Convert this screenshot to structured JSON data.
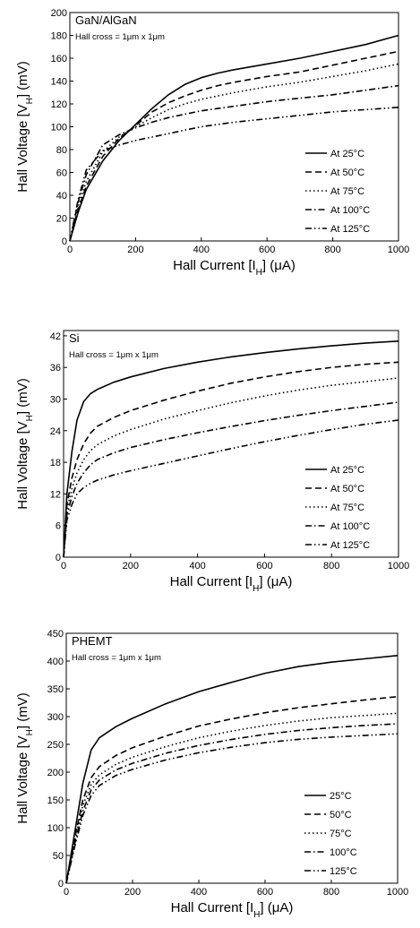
{
  "chart_data": [
    {
      "type": "line",
      "title": "GaN/AlGaN",
      "annotation": "Hall cross = 1μm x 1μm",
      "xlabel": "Hall Current [Iₕ] (μA)",
      "xlabel_parts": {
        "pre": "Hall Current [I",
        "sub": "H",
        "post": "] (μA)"
      },
      "ylabel_parts": {
        "pre": "Hall Voltage [V",
        "sub": "H",
        "post": "] (mV)"
      },
      "xlim": [
        0,
        1000
      ],
      "ylim": [
        0,
        200
      ],
      "xticks": [
        0,
        200,
        400,
        600,
        800,
        1000
      ],
      "yticks": [
        0,
        20,
        40,
        60,
        80,
        100,
        120,
        140,
        160,
        180,
        200
      ],
      "legend_position": "bottom-right",
      "x": [
        0,
        25,
        50,
        100,
        150,
        200,
        250,
        300,
        350,
        400,
        450,
        500,
        600,
        700,
        800,
        900,
        1000
      ],
      "series": [
        {
          "name": "At 25°C",
          "dash": "solid",
          "values": [
            0,
            25,
            45,
            70,
            88,
            102,
            116,
            128,
            137,
            143,
            147,
            150,
            155,
            160,
            166,
            172,
            180
          ]
        },
        {
          "name": "At 50°C",
          "dash": "dash",
          "values": [
            0,
            27,
            48,
            74,
            90,
            101,
            113,
            121,
            127,
            132,
            136,
            139,
            144,
            148,
            154,
            160,
            166
          ]
        },
        {
          "name": "At 75°C",
          "dash": "dot",
          "values": [
            0,
            30,
            52,
            78,
            91,
            100,
            108,
            115,
            120,
            124,
            127,
            130,
            135,
            139,
            144,
            149,
            155
          ]
        },
        {
          "name": "At 100°C",
          "dash": "dashdot",
          "values": [
            0,
            34,
            58,
            84,
            93,
            99,
            104,
            108,
            111,
            114,
            116,
            118,
            122,
            125,
            128,
            132,
            136
          ]
        },
        {
          "name": "At 125°C",
          "dash": "dashdotdot",
          "values": [
            0,
            36,
            62,
            79,
            84,
            88,
            91,
            94,
            97,
            100,
            102,
            104,
            107,
            110,
            113,
            115,
            117
          ]
        }
      ]
    },
    {
      "type": "line",
      "title": "Si",
      "annotation": "Hall cross = 1μm x 1μm",
      "xlabel_parts": {
        "pre": "Hall Current [I",
        "sub": "H",
        "post": "] (μA)"
      },
      "ylabel_parts": {
        "pre": "Hall Voltage [V",
        "sub": "H",
        "post": "] (mV)"
      },
      "xlim": [
        0,
        1000
      ],
      "ylim": [
        0,
        43
      ],
      "xticks": [
        0,
        200,
        400,
        600,
        800,
        1000
      ],
      "yticks": [
        0,
        6,
        12,
        18,
        24,
        30,
        36,
        42
      ],
      "legend_position": "bottom-right",
      "x": [
        0,
        10,
        25,
        40,
        60,
        80,
        100,
        150,
        200,
        300,
        400,
        500,
        600,
        700,
        800,
        900,
        1000
      ],
      "series": [
        {
          "name": "At 25°C",
          "dash": "solid",
          "values": [
            0,
            12,
            20,
            26,
            29.5,
            31,
            31.8,
            33.2,
            34.2,
            35.8,
            37,
            38,
            38.8,
            39.5,
            40.1,
            40.6,
            41
          ]
        },
        {
          "name": "At 50°C",
          "dash": "dash",
          "values": [
            0,
            10,
            15,
            18.5,
            21.5,
            23.5,
            24.8,
            26.5,
            27.8,
            29.8,
            31.5,
            33,
            34.2,
            35.2,
            36,
            36.6,
            37
          ]
        },
        {
          "name": "At 75°C",
          "dash": "dot",
          "values": [
            0,
            9,
            13,
            16,
            18.5,
            20.2,
            21.3,
            23,
            24.2,
            26.2,
            27.8,
            29.3,
            30.6,
            31.7,
            32.6,
            33.3,
            34
          ]
        },
        {
          "name": "At 100°C",
          "dash": "dashdot",
          "values": [
            0,
            8,
            11.5,
            14,
            16,
            17.5,
            18.5,
            19.8,
            20.8,
            22.3,
            23.6,
            24.8,
            25.9,
            26.9,
            27.8,
            28.6,
            29.4
          ]
        },
        {
          "name": "At 125°C",
          "dash": "dashdotdot",
          "values": [
            0,
            7,
            10,
            12,
            13.2,
            14,
            14.6,
            15.6,
            16.4,
            17.8,
            19.2,
            20.6,
            21.9,
            23.1,
            24.2,
            25.2,
            26
          ]
        }
      ]
    },
    {
      "type": "line",
      "title": "PHEMT",
      "annotation": "Hall cross = 1μm x 1μm",
      "xlabel_parts": {
        "pre": "Hall Current [I",
        "sub": "H",
        "post": "] (μA)"
      },
      "ylabel_parts": {
        "pre": "Hall Voltage [V",
        "sub": "H",
        "post": "] (mV)"
      },
      "xlim": [
        0,
        1000
      ],
      "ylim": [
        0,
        450
      ],
      "xticks": [
        0,
        200,
        400,
        600,
        800,
        1000
      ],
      "yticks": [
        0,
        50,
        100,
        150,
        200,
        250,
        300,
        350,
        400,
        450
      ],
      "legend_position": "bottom-right",
      "x": [
        0,
        25,
        50,
        75,
        100,
        150,
        200,
        300,
        400,
        500,
        600,
        700,
        800,
        900,
        1000
      ],
      "series": [
        {
          "name": "25°C",
          "dash": "solid",
          "values": [
            0,
            90,
            180,
            240,
            262,
            282,
            297,
            323,
            345,
            362,
            378,
            390,
            398,
            404,
            410
          ]
        },
        {
          "name": "50°C",
          "dash": "dash",
          "values": [
            0,
            80,
            150,
            190,
            210,
            230,
            244,
            265,
            283,
            296,
            307,
            316,
            323,
            330,
            336
          ]
        },
        {
          "name": "75°C",
          "dash": "dot",
          "values": [
            0,
            75,
            140,
            178,
            195,
            214,
            227,
            246,
            262,
            274,
            284,
            292,
            298,
            302,
            306
          ]
        },
        {
          "name": "100°C",
          "dash": "dashdot",
          "values": [
            0,
            70,
            130,
            168,
            186,
            204,
            216,
            234,
            248,
            259,
            268,
            275,
            280,
            284,
            287
          ]
        },
        {
          "name": "125°C",
          "dash": "dashdotdot",
          "values": [
            0,
            65,
            122,
            158,
            176,
            194,
            205,
            222,
            235,
            245,
            253,
            259,
            263,
            266,
            269
          ]
        }
      ]
    }
  ]
}
